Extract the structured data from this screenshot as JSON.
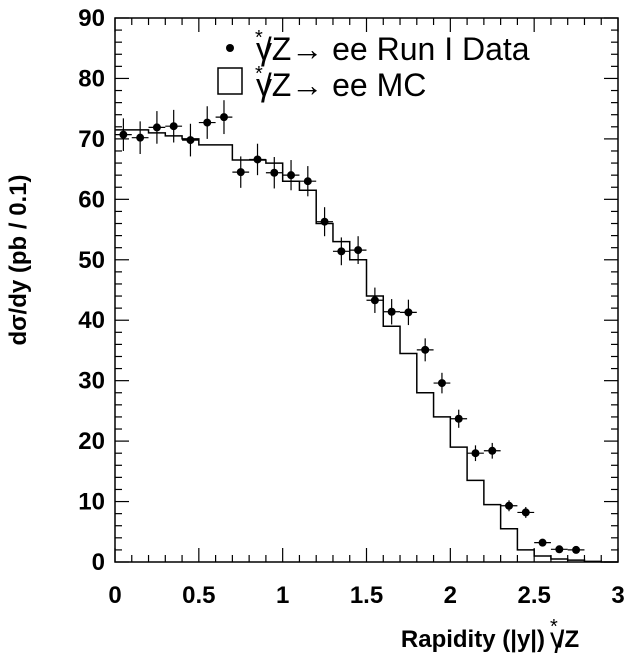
{
  "chart_data": {
    "type": "scatter",
    "xlabel": "Rapidity (|y|)",
    "xlabel_suffix": "γ",
    "xlabel_suffix_sup": "*",
    "xlabel_suffix_tail": "/Z",
    "ylabel": "dσ/dy (pb / 0.1)",
    "xlim": [
      0,
      3
    ],
    "ylim": [
      0,
      90
    ],
    "x_ticks": [
      "0",
      "0.5",
      "1",
      "1.5",
      "2",
      "2.5",
      "3"
    ],
    "y_ticks": [
      "0",
      "10",
      "20",
      "30",
      "40",
      "50",
      "60",
      "70",
      "80",
      "90"
    ],
    "legend": {
      "placement": "top-right",
      "entries": [
        {
          "marker": "dot",
          "pre": "γ",
          "sup": "*",
          "post": "/Z→ ee Run I Data"
        },
        {
          "marker": "open-box",
          "pre": "γ",
          "sup": "*",
          "post": "/Z→ ee MC"
        }
      ]
    },
    "series": [
      {
        "name": "γ*/Z→ ee Run I Data",
        "style": "points-with-errors",
        "x": [
          0.05,
          0.15,
          0.25,
          0.35,
          0.45,
          0.55,
          0.65,
          0.75,
          0.85,
          0.95,
          1.05,
          1.15,
          1.25,
          1.35,
          1.45,
          1.55,
          1.65,
          1.75,
          1.85,
          1.95,
          2.05,
          2.15,
          2.25,
          2.35,
          2.45,
          2.55,
          2.65,
          2.75
        ],
        "y": [
          70.7,
          70.2,
          71.9,
          72.1,
          69.8,
          72.7,
          73.6,
          64.5,
          66.6,
          64.4,
          64.0,
          63.0,
          56.3,
          51.4,
          51.6,
          43.3,
          41.4,
          41.3,
          35.1,
          29.6,
          23.7,
          18.0,
          18.4,
          9.3,
          8.2,
          3.2,
          2.1,
          2.0
        ],
        "yerr": [
          2.7,
          2.7,
          2.7,
          2.7,
          2.7,
          2.7,
          2.8,
          2.6,
          2.6,
          2.6,
          2.5,
          2.5,
          2.4,
          2.3,
          2.3,
          2.1,
          2.1,
          2.1,
          1.9,
          1.7,
          1.5,
          1.3,
          1.3,
          0.9,
          0.9,
          0.6,
          0.5,
          0.5
        ]
      },
      {
        "name": "γ*/Z→ ee MC",
        "style": "step",
        "bin_edges": [
          0,
          0.1,
          0.2,
          0.3,
          0.4,
          0.5,
          0.6,
          0.7,
          0.8,
          0.9,
          1.0,
          1.1,
          1.2,
          1.3,
          1.4,
          1.5,
          1.6,
          1.7,
          1.8,
          1.9,
          2.0,
          2.1,
          2.2,
          2.3,
          2.4,
          2.5,
          2.6,
          2.7,
          2.8,
          2.9,
          3.0
        ],
        "values": [
          71.5,
          71.5,
          71.0,
          70.5,
          70.0,
          69.0,
          69.0,
          66.5,
          66.5,
          66.0,
          63.0,
          61.5,
          56.0,
          53.0,
          50.0,
          44.0,
          39.0,
          34.5,
          28.0,
          24.0,
          19.0,
          13.5,
          9.5,
          5.5,
          2.0,
          1.0,
          0.5,
          0.3,
          0.1,
          0.0
        ]
      }
    ]
  }
}
